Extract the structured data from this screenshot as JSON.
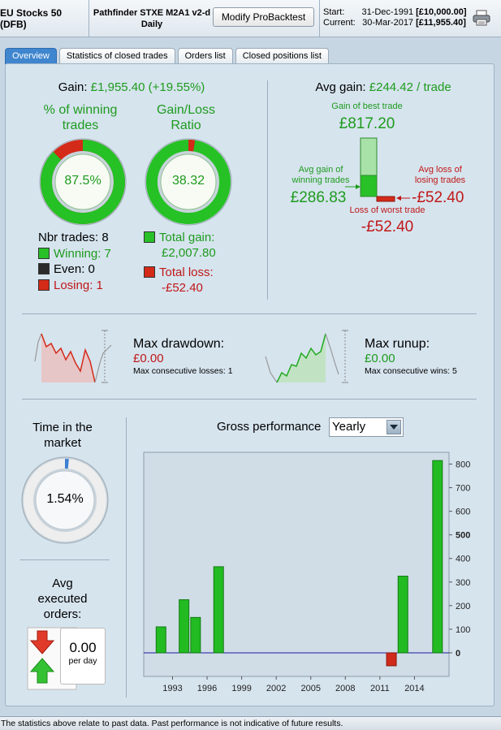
{
  "header": {
    "instrument": "EU Stocks 50 (DFB)",
    "strategy_name": "Pathfinder STXE M2A1 v2-d",
    "timeframe": "Daily",
    "modify_button": "Modify ProBacktest",
    "start_label": "Start:",
    "start_date": "31-Dec-1991",
    "start_capital": "[£10,000.00]",
    "current_label": "Current:",
    "current_date": "30-Mar-2017",
    "current_capital": "[£11,955.40]",
    "print_icon": "printer-icon"
  },
  "tabs": [
    {
      "label": "Overview",
      "active": true
    },
    {
      "label": "Statistics of closed trades",
      "active": false
    },
    {
      "label": "Orders list",
      "active": false
    },
    {
      "label": "Closed positions list",
      "active": false
    }
  ],
  "gain": {
    "label": "Gain:",
    "value": "£1,955.40 (+19.55%)"
  },
  "winning_pct": {
    "title_line1": "% of winning",
    "title_line2": "trades",
    "value": "87.5%",
    "fraction": 0.875
  },
  "gain_loss_ratio": {
    "title_line1": "Gain/Loss",
    "title_line2": "Ratio",
    "value": "38.32",
    "loss_fraction": 0.0255
  },
  "trades": {
    "nbr_label": "Nbr trades: 8",
    "winning": "Winning: 7",
    "even": "Even: 0",
    "losing": "Losing: 1"
  },
  "totals": {
    "gain_label": "Total gain:",
    "gain_value": "£2,007.80",
    "loss_label": "Total loss:",
    "loss_value": "-£52.40"
  },
  "avg_gain": {
    "label": "Avg gain:",
    "value": "£244.42 / trade",
    "best_label": "Gain of best trade",
    "best_value": "£817.20",
    "avg_win_label_1": "Avg gain of",
    "avg_win_label_2": "winning trades",
    "avg_win_value": "£286.83",
    "avg_loss_label_1": "Avg loss of",
    "avg_loss_label_2": "losing trades",
    "avg_loss_value": "-£52.40",
    "worst_label": "Loss of worst trade",
    "worst_value": "-£52.40"
  },
  "drawdown": {
    "label": "Max drawdown:",
    "value": "£0.00",
    "consec": "Max consecutive losses: 1"
  },
  "runup": {
    "label": "Max runup:",
    "value": "£0.00",
    "consec": "Max consecutive wins: 5"
  },
  "time_in_market": {
    "title_line1": "Time in the",
    "title_line2": "market",
    "value": "1.54%",
    "fraction": 0.0154
  },
  "avg_orders": {
    "title_line1": "Avg",
    "title_line2": "executed",
    "title_line3": "orders:",
    "value": "0.00",
    "unit": "per day"
  },
  "gross_performance": {
    "label": "Gross performance",
    "period": "Yearly"
  },
  "chart_data": {
    "type": "bar",
    "x": [
      1992,
      1994,
      1995,
      1997,
      2012,
      2013,
      2016
    ],
    "values": [
      110,
      225,
      150,
      365,
      -55,
      325,
      815
    ],
    "x_ticks": [
      "1993",
      "1996",
      "1999",
      "2002",
      "2005",
      "2008",
      "2011",
      "2014"
    ],
    "x_tick_values": [
      1993,
      1996,
      1999,
      2002,
      2005,
      2008,
      2011,
      2014
    ],
    "y_ticks": [
      "800",
      "700",
      "600",
      "500",
      "400",
      "300",
      "200",
      "100",
      "0"
    ],
    "y_tick_values": [
      800,
      700,
      600,
      500,
      400,
      300,
      200,
      100,
      0
    ],
    "xlim": [
      1990.5,
      2017
    ],
    "ylim": [
      -100,
      850
    ],
    "positive_color": "#22bb22",
    "negative_color": "#d02a1a",
    "zero_line_color": "#1a1aa0"
  },
  "footer": {
    "disclaimer": "The statistics above relate to past data. Past performance is not indicative of future results."
  },
  "colors": {
    "green": "#1e9b1e",
    "red": "#c01818",
    "tab_active": "#3f86cf"
  }
}
